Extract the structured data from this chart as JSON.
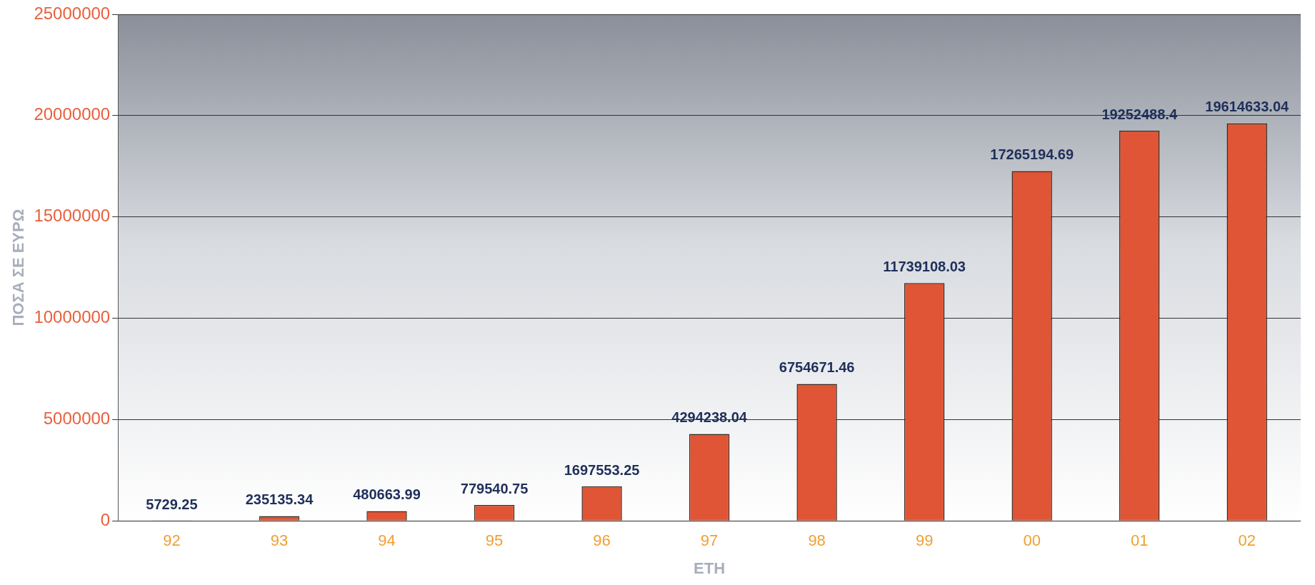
{
  "chart_data": {
    "type": "bar",
    "xlabel": "ΕΤΗ",
    "ylabel": "ΠΟΣΑ ΣΕ ΕΥΡΩ",
    "categories": [
      "92",
      "93",
      "94",
      "95",
      "96",
      "97",
      "98",
      "99",
      "00",
      "01",
      "02"
    ],
    "values": [
      5729.25,
      235135.34,
      480663.99,
      779540.75,
      1697553.25,
      4294238.04,
      6754671.46,
      11739108.03,
      17265194.69,
      19252488.4,
      19614633.04
    ],
    "color": "#e05535",
    "ylim": [
      0,
      25000000
    ],
    "yticks": [
      0,
      5000000,
      10000000,
      15000000,
      20000000,
      25000000
    ],
    "grid": "y",
    "legend": false,
    "data_labels": true
  }
}
